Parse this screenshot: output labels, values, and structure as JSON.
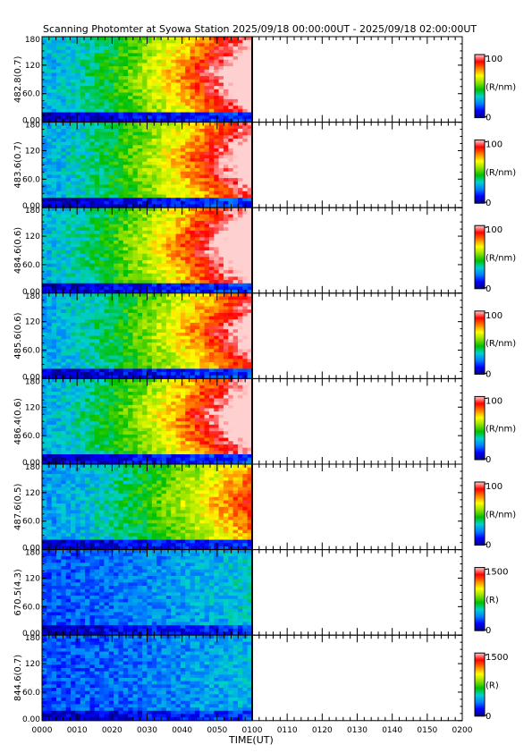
{
  "title": "Scanning Photomter at Syowa Station 2025/09/18 00:00:00UT - 2025/09/18 02:00:00UT",
  "colors": {
    "background": "#ffffff",
    "axis": "#000000",
    "colormap": [
      "#00007f",
      "#0000ff",
      "#0080ff",
      "#00d0d0",
      "#00c000",
      "#90e000",
      "#ffff00",
      "#ff8000",
      "#ff0000",
      "#ffd0d0"
    ]
  },
  "chart_data": {
    "type": "heatmap",
    "xlabel": "TIME(UT)",
    "xlim": [
      "0000",
      "0200"
    ],
    "x_ticks": [
      "0000",
      "0010",
      "0020",
      "0030",
      "0040",
      "0050",
      "0100",
      "0110",
      "0120",
      "0130",
      "0140",
      "0150",
      "0200"
    ],
    "data_end": "0100",
    "ylim": [
      0,
      180
    ],
    "y_ticks": [
      "180",
      "120",
      "60.0",
      "0.00"
    ],
    "panels": [
      {
        "ylabel": "482.8(0.7)",
        "unit": "(R/nm)",
        "cmax": "100",
        "cmin": "0",
        "peak_intensity": 0.85
      },
      {
        "ylabel": "483.6(0.7)",
        "unit": "(R/nm)",
        "cmax": "100",
        "cmin": "0",
        "peak_intensity": 0.82
      },
      {
        "ylabel": "484.6(0.6)",
        "unit": "(R/nm)",
        "cmax": "100",
        "cmin": "0",
        "peak_intensity": 0.88
      },
      {
        "ylabel": "485.6(0.6)",
        "unit": "(R/nm)",
        "cmax": "100",
        "cmin": "0",
        "peak_intensity": 0.78
      },
      {
        "ylabel": "486.4(0.6)",
        "unit": "(R/nm)",
        "cmax": "100",
        "cmin": "0",
        "peak_intensity": 0.86
      },
      {
        "ylabel": "487.6(0.5)",
        "unit": "(R/nm)",
        "cmax": "100",
        "cmin": "0",
        "peak_intensity": 0.65
      },
      {
        "ylabel": "670.5(4.3)",
        "unit": "(R)",
        "cmax": "1500",
        "cmin": "0",
        "peak_intensity": 0.2
      },
      {
        "ylabel": "844.6(0.7)",
        "unit": "(R)",
        "cmax": "1500",
        "cmin": "0",
        "peak_intensity": 0.17
      }
    ]
  }
}
